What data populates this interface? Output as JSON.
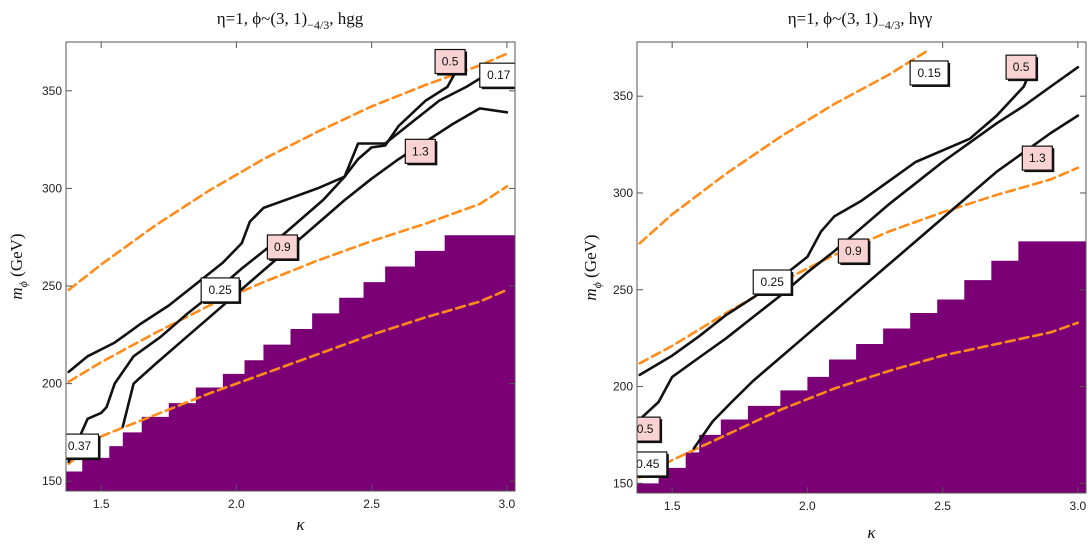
{
  "chart_data": [
    {
      "type": "contour",
      "title": "η=1, ϕ~(3, 1)",
      "title_sub": "−4/3",
      "title_tail": ", hgg",
      "xlabel": "κ",
      "ylabel_main": "m",
      "ylabel_sub": "ϕ",
      "ylabel_tail": " (GeV)",
      "xlim": [
        1.37,
        3.03
      ],
      "ylim": [
        145,
        375
      ],
      "xticks": [
        1.5,
        2.0,
        2.5,
        3.0
      ],
      "xtick_labels": [
        "1.5",
        "2.0",
        "2.5",
        "3.0"
      ],
      "yticks": [
        150,
        200,
        250,
        300,
        350
      ],
      "ytick_labels": [
        "150",
        "200",
        "250",
        "300",
        "350"
      ],
      "excluded_region": {
        "color": "#7b0076",
        "boundary": [
          [
            1.37,
            155
          ],
          [
            1.43,
            155
          ],
          [
            1.43,
            162
          ],
          [
            1.53,
            162
          ],
          [
            1.53,
            168
          ],
          [
            1.58,
            168
          ],
          [
            1.58,
            175
          ],
          [
            1.65,
            175
          ],
          [
            1.65,
            183
          ],
          [
            1.75,
            183
          ],
          [
            1.75,
            190
          ],
          [
            1.85,
            190
          ],
          [
            1.85,
            198
          ],
          [
            1.95,
            198
          ],
          [
            1.95,
            205
          ],
          [
            2.03,
            205
          ],
          [
            2.03,
            212
          ],
          [
            2.1,
            212
          ],
          [
            2.1,
            220
          ],
          [
            2.2,
            220
          ],
          [
            2.2,
            228
          ],
          [
            2.28,
            228
          ],
          [
            2.28,
            236
          ],
          [
            2.38,
            236
          ],
          [
            2.38,
            244
          ],
          [
            2.47,
            244
          ],
          [
            2.47,
            252
          ],
          [
            2.55,
            252
          ],
          [
            2.55,
            260
          ],
          [
            2.66,
            260
          ],
          [
            2.66,
            268
          ],
          [
            2.77,
            268
          ],
          [
            2.77,
            276
          ],
          [
            3.03,
            276
          ]
        ]
      },
      "solid_contours": [
        {
          "label": "0.5",
          "label_style": "pink",
          "points": [
            [
              1.38,
              206
            ],
            [
              1.45,
              214
            ],
            [
              1.55,
              221
            ],
            [
              1.65,
              231
            ],
            [
              1.75,
              240
            ],
            [
              1.85,
              251
            ],
            [
              1.95,
              262
            ],
            [
              2.02,
              272
            ],
            [
              2.05,
              283
            ],
            [
              2.1,
              290
            ],
            [
              2.2,
              295
            ],
            [
              2.3,
              300
            ],
            [
              2.4,
              306
            ],
            [
              2.45,
              315
            ],
            [
              2.5,
              321
            ],
            [
              2.55,
              322
            ],
            [
              2.6,
              332
            ],
            [
              2.7,
              345
            ],
            [
              2.78,
              352
            ],
            [
              2.82,
              362
            ]
          ]
        },
        {
          "label": "0.17",
          "label_style": "white",
          "points": [
            [
              1.38,
              160
            ],
            [
              1.45,
              182
            ],
            [
              1.5,
              185
            ],
            [
              1.52,
              188
            ],
            [
              1.55,
              200
            ],
            [
              1.62,
              214
            ],
            [
              1.72,
              224
            ],
            [
              1.82,
              236
            ],
            [
              1.92,
              247
            ],
            [
              2.02,
              259
            ],
            [
              2.12,
              270
            ],
            [
              2.22,
              282
            ],
            [
              2.32,
              294
            ],
            [
              2.4,
              306
            ],
            [
              2.45,
              323
            ],
            [
              2.55,
              323
            ],
            [
              2.65,
              334
            ],
            [
              2.75,
              345
            ],
            [
              2.85,
              352
            ],
            [
              2.98,
              363
            ]
          ]
        },
        {
          "label": "0.9",
          "label_style": "pink",
          "points": [
            [
              1.58,
              178
            ],
            [
              1.62,
              200
            ],
            [
              1.7,
              210
            ],
            [
              1.8,
              222
            ],
            [
              1.9,
              234
            ],
            [
              2.0,
              246
            ],
            [
              2.1,
              258
            ],
            [
              2.2,
              270
            ],
            [
              2.3,
              282
            ],
            [
              2.4,
              294
            ],
            [
              2.5,
              305
            ],
            [
              2.6,
              315
            ],
            [
              2.7,
              324
            ],
            [
              2.8,
              333
            ],
            [
              2.9,
              341
            ],
            [
              3.0,
              339
            ]
          ]
        }
      ],
      "dashed_contours": [
        {
          "label": "1.3",
          "label_style": "pink",
          "points": [
            [
              1.38,
              248
            ],
            [
              1.5,
              261
            ],
            [
              1.7,
              281
            ],
            [
              1.9,
              299
            ],
            [
              2.1,
              315
            ],
            [
              2.3,
              329
            ],
            [
              2.5,
              342
            ],
            [
              2.7,
              353
            ],
            [
              2.9,
              363
            ],
            [
              3.0,
              369
            ]
          ]
        },
        {
          "label": "0.25",
          "label_style": "white",
          "points": [
            [
              1.38,
              201
            ],
            [
              1.5,
              211
            ],
            [
              1.7,
              226
            ],
            [
              1.9,
              240
            ],
            [
              2.1,
              252
            ],
            [
              2.3,
              263
            ],
            [
              2.5,
              273
            ],
            [
              2.7,
              282
            ],
            [
              2.9,
              292
            ],
            [
              3.0,
              301
            ]
          ]
        },
        {
          "label": "0.37",
          "label_style": "white",
          "points": [
            [
              1.38,
              159
            ],
            [
              1.5,
              173
            ],
            [
              1.7,
              184
            ],
            [
              1.9,
              195
            ],
            [
              2.1,
              205
            ],
            [
              2.3,
              215
            ],
            [
              2.5,
              225
            ],
            [
              2.7,
              234
            ],
            [
              2.9,
              242
            ],
            [
              3.0,
              248
            ]
          ]
        }
      ],
      "labels": [
        {
          "text": "0.5",
          "style": "pink",
          "x": 2.79,
          "y": 365
        },
        {
          "text": "0.17",
          "style": "white",
          "x": 2.97,
          "y": 358
        },
        {
          "text": "1.3",
          "style": "pink",
          "x": 2.68,
          "y": 319
        },
        {
          "text": "0.9",
          "style": "pink",
          "x": 2.17,
          "y": 270
        },
        {
          "text": "0.25",
          "style": "white",
          "x": 1.94,
          "y": 248
        },
        {
          "text": "0.37",
          "style": "white",
          "x": 1.42,
          "y": 168
        }
      ]
    },
    {
      "type": "contour",
      "title": "η=1, ϕ~(3, 1)",
      "title_sub": "−4/3",
      "title_tail": ", hγγ",
      "xlabel": "κ",
      "ylabel_main": "m",
      "ylabel_sub": "ϕ",
      "ylabel_tail": " (GeV)",
      "xlim": [
        1.37,
        3.03
      ],
      "ylim": [
        145,
        378
      ],
      "xticks": [
        1.5,
        2.0,
        2.5,
        3.0
      ],
      "xtick_labels": [
        "1.5",
        "2.0",
        "2.5",
        "3.0"
      ],
      "yticks": [
        150,
        200,
        250,
        300,
        350
      ],
      "ytick_labels": [
        "150",
        "200",
        "250",
        "300",
        "350"
      ],
      "excluded_region": {
        "color": "#7b0076",
        "boundary": [
          [
            1.37,
            150
          ],
          [
            1.45,
            150
          ],
          [
            1.45,
            158
          ],
          [
            1.55,
            158
          ],
          [
            1.55,
            166
          ],
          [
            1.6,
            166
          ],
          [
            1.6,
            175
          ],
          [
            1.68,
            175
          ],
          [
            1.68,
            183
          ],
          [
            1.78,
            183
          ],
          [
            1.78,
            190
          ],
          [
            1.9,
            190
          ],
          [
            1.9,
            198
          ],
          [
            2.0,
            198
          ],
          [
            2.0,
            205
          ],
          [
            2.08,
            205
          ],
          [
            2.08,
            214
          ],
          [
            2.18,
            214
          ],
          [
            2.18,
            222
          ],
          [
            2.28,
            222
          ],
          [
            2.28,
            230
          ],
          [
            2.38,
            230
          ],
          [
            2.38,
            238
          ],
          [
            2.48,
            238
          ],
          [
            2.48,
            245
          ],
          [
            2.58,
            245
          ],
          [
            2.58,
            255
          ],
          [
            2.68,
            255
          ],
          [
            2.68,
            265
          ],
          [
            2.78,
            265
          ],
          [
            2.78,
            275
          ],
          [
            3.03,
            275
          ]
        ]
      },
      "solid_contours": [
        {
          "label": "0.5",
          "label_style": "pink",
          "points": [
            [
              1.38,
              206
            ],
            [
              1.5,
              216
            ],
            [
              1.6,
              226
            ],
            [
              1.7,
              237
            ],
            [
              1.8,
              246
            ],
            [
              1.9,
              256
            ],
            [
              2.0,
              267
            ],
            [
              2.05,
              280
            ],
            [
              2.1,
              288
            ],
            [
              2.2,
              296
            ],
            [
              2.3,
              306
            ],
            [
              2.4,
              316
            ],
            [
              2.5,
              322
            ],
            [
              2.6,
              328
            ],
            [
              2.7,
              340
            ],
            [
              2.8,
              355
            ],
            [
              2.83,
              365
            ]
          ]
        },
        {
          "label": "0.15",
          "label_style": "white",
          "points": [
            [
              1.38,
              183
            ],
            [
              1.45,
              192
            ],
            [
              1.5,
              205
            ],
            [
              1.6,
              215
            ],
            [
              1.7,
              225
            ],
            [
              1.8,
              236
            ],
            [
              1.9,
              247
            ],
            [
              2.0,
              259
            ],
            [
              2.1,
              270
            ],
            [
              2.2,
              282
            ],
            [
              2.3,
              294
            ],
            [
              2.4,
              305
            ],
            [
              2.5,
              316
            ],
            [
              2.6,
              326
            ],
            [
              2.7,
              336
            ],
            [
              2.8,
              345
            ],
            [
              2.9,
              355
            ],
            [
              3.0,
              365
            ]
          ]
        },
        {
          "label": "0.9",
          "label_style": "pink",
          "points": [
            [
              1.58,
              168
            ],
            [
              1.65,
              182
            ],
            [
              1.72,
              192
            ],
            [
              1.8,
              203
            ],
            [
              1.9,
              215
            ],
            [
              2.0,
              227
            ],
            [
              2.1,
              239
            ],
            [
              2.2,
              251
            ],
            [
              2.3,
              263
            ],
            [
              2.4,
              275
            ],
            [
              2.5,
              287
            ],
            [
              2.6,
              299
            ],
            [
              2.7,
              311
            ],
            [
              2.8,
              321
            ],
            [
              2.9,
              331
            ],
            [
              3.0,
              340
            ]
          ]
        }
      ],
      "dashed_contours": [
        {
          "label": "1.3",
          "label_style": "pink",
          "points": [
            [
              1.38,
              274
            ],
            [
              1.5,
              289
            ],
            [
              1.7,
              310
            ],
            [
              1.9,
              329
            ],
            [
              2.1,
              346
            ],
            [
              2.3,
              361
            ],
            [
              2.45,
              374
            ]
          ]
        },
        {
          "label": "0.25",
          "label_style": "white",
          "points": [
            [
              1.38,
              212
            ],
            [
              1.5,
              221
            ],
            [
              1.7,
              238
            ],
            [
              1.9,
              254
            ],
            [
              2.1,
              268
            ],
            [
              2.3,
              280
            ],
            [
              2.5,
              290
            ],
            [
              2.7,
              299
            ],
            [
              2.9,
              307
            ],
            [
              3.0,
              313
            ]
          ]
        },
        {
          "label": "0.45",
          "label_style": "white",
          "points": [
            [
              1.38,
              153
            ],
            [
              1.5,
              162
            ],
            [
              1.7,
              175
            ],
            [
              1.9,
              188
            ],
            [
              2.1,
              199
            ],
            [
              2.3,
              208
            ],
            [
              2.5,
              216
            ],
            [
              2.7,
              222
            ],
            [
              2.9,
              228
            ],
            [
              3.0,
              233
            ]
          ]
        }
      ],
      "labels": [
        {
          "text": "0.15",
          "style": "white",
          "x": 2.45,
          "y": 362
        },
        {
          "text": "0.5",
          "style": "pink",
          "x": 2.79,
          "y": 365
        },
        {
          "text": "1.3",
          "style": "pink",
          "x": 2.85,
          "y": 318
        },
        {
          "text": "0.9",
          "style": "pink",
          "x": 2.17,
          "y": 270
        },
        {
          "text": "0.25",
          "style": "white",
          "x": 1.87,
          "y": 254
        },
        {
          "text": "0.5",
          "style": "pink",
          "x": 1.4,
          "y": 178
        },
        {
          "text": "0.45",
          "style": "white",
          "x": 1.41,
          "y": 160
        }
      ]
    }
  ]
}
